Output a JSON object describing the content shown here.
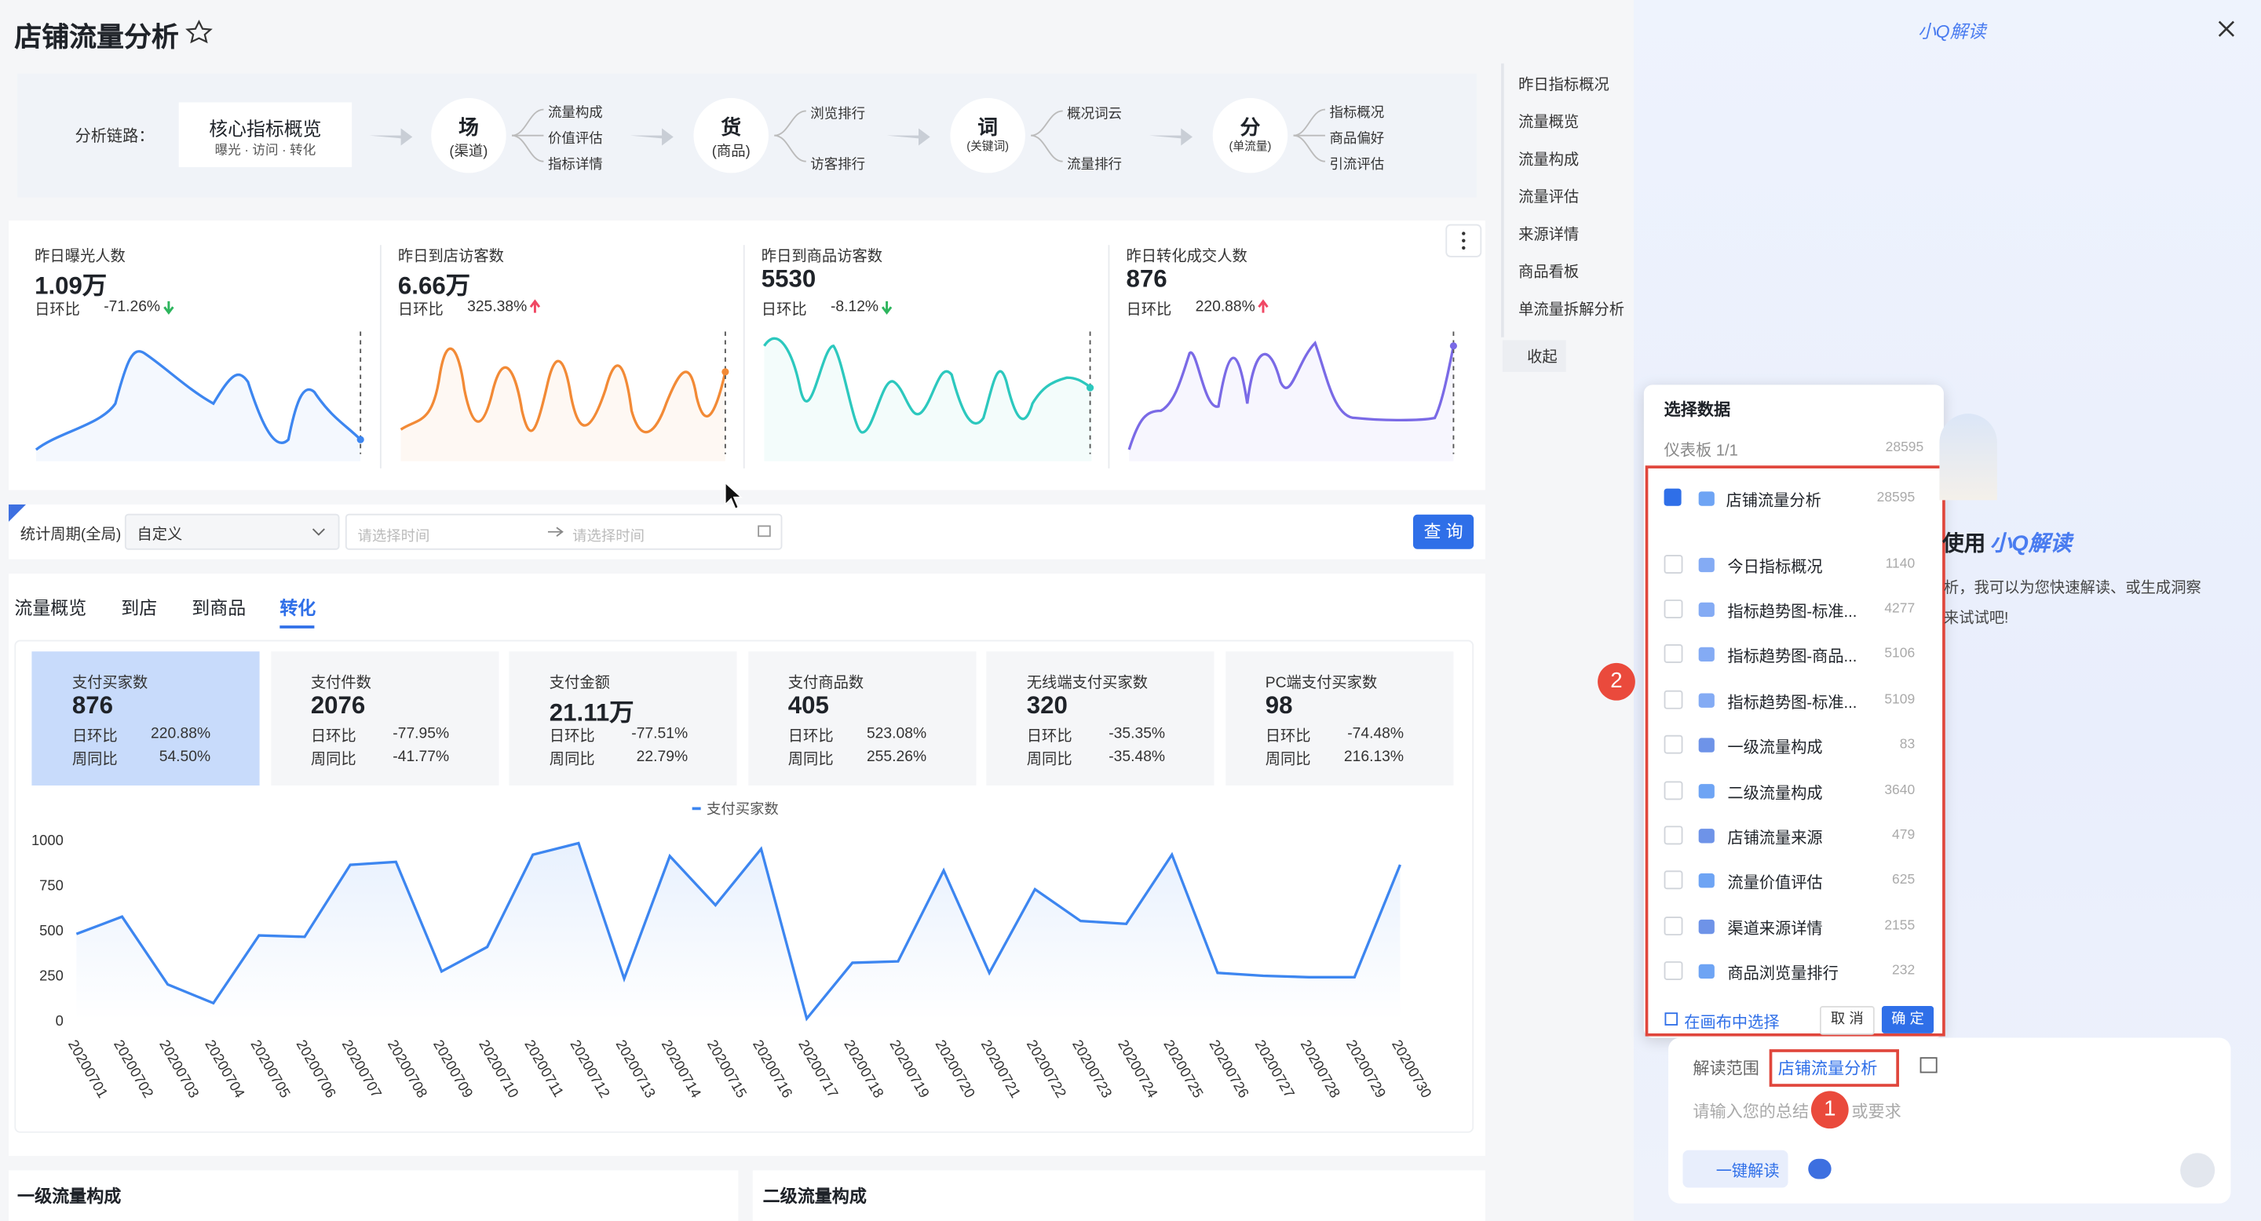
{
  "header": {
    "title": "店铺流量分析"
  },
  "chain": {
    "label": "分析链路：",
    "core": {
      "title": "核心指标概览",
      "subtitle": "曝光 · 访问 · 转化"
    },
    "nodes": [
      {
        "char": "场",
        "sub": "(渠道)",
        "items": [
          "流量构成",
          "价值评估",
          "指标详情"
        ]
      },
      {
        "char": "货",
        "sub": "(商品)",
        "items": [
          "浏览排行",
          "访客排行"
        ]
      },
      {
        "char": "词",
        "sub": "(关键词)",
        "items": [
          "概况词云",
          "流量排行"
        ]
      },
      {
        "char": "分",
        "sub": "(单流量)",
        "items": [
          "指标概况",
          "商品偏好",
          "引流评估"
        ]
      }
    ]
  },
  "kpis": [
    {
      "label": "昨日曝光人数",
      "value": "1.09万",
      "compare": "日环比",
      "change": "-71.26%",
      "dir": "down",
      "color": "#3d86f0"
    },
    {
      "label": "昨日到店访客数",
      "value": "6.66万",
      "compare": "日环比",
      "change": "325.38%",
      "dir": "up",
      "color": "#f28a36"
    },
    {
      "label": "昨日到商品访客数",
      "value": "5530",
      "compare": "日环比",
      "change": "-8.12%",
      "dir": "down",
      "color": "#2cc8be"
    },
    {
      "label": "昨日转化成交人数",
      "value": "876",
      "compare": "日环比",
      "change": "220.88%",
      "dir": "up",
      "color": "#7a6ae6"
    }
  ],
  "nav": {
    "items": [
      "昨日指标概况",
      "流量概览",
      "流量构成",
      "流量评估",
      "来源详情",
      "商品看板",
      "单流量拆解分析"
    ],
    "collapse": "收起"
  },
  "filter": {
    "label": "统计周期(全局)",
    "select": "自定义",
    "start": "请选择时间",
    "end": "请选择时间",
    "button": "查 询"
  },
  "tabs": {
    "items": [
      "流量概览",
      "到店",
      "到商品",
      "转化"
    ],
    "active": 3
  },
  "metrics": [
    {
      "label": "支付买家数",
      "value": "876",
      "rows": [
        {
          "label": "日环比",
          "value": "220.88%",
          "dir": "up"
        },
        {
          "label": "周同比",
          "value": "54.50%",
          "dir": "up"
        }
      ]
    },
    {
      "label": "支付件数",
      "value": "2076",
      "rows": [
        {
          "label": "日环比",
          "value": "-77.95%",
          "dir": "down"
        },
        {
          "label": "周同比",
          "value": "-41.77%",
          "dir": "down"
        }
      ]
    },
    {
      "label": "支付金额",
      "value": "21.11万",
      "rows": [
        {
          "label": "日环比",
          "value": "-77.51%",
          "dir": "down"
        },
        {
          "label": "周同比",
          "value": "22.79%",
          "dir": "up"
        }
      ]
    },
    {
      "label": "支付商品数",
      "value": "405",
      "rows": [
        {
          "label": "日环比",
          "value": "523.08%",
          "dir": "up"
        },
        {
          "label": "周同比",
          "value": "255.26%",
          "dir": "up"
        }
      ]
    },
    {
      "label": "无线端支付买家数",
      "value": "320",
      "rows": [
        {
          "label": "日环比",
          "value": "-35.35%",
          "dir": "down"
        },
        {
          "label": "周同比",
          "value": "-35.48%",
          "dir": "down"
        }
      ]
    },
    {
      "label": "PC端支付买家数",
      "value": "98",
      "rows": [
        {
          "label": "日环比",
          "value": "-74.48%",
          "dir": "down"
        },
        {
          "label": "周同比",
          "value": "216.13%",
          "dir": "up"
        }
      ]
    }
  ],
  "chart_data": {
    "type": "line",
    "categories": [
      "20200701",
      "20200702",
      "20200703",
      "20200704",
      "20200705",
      "20200706",
      "20200707",
      "20200708",
      "20200709",
      "20200710",
      "20200711",
      "20200712",
      "20200713",
      "20200714",
      "20200715",
      "20200716",
      "20200717",
      "20200718",
      "20200719",
      "20200720",
      "20200721",
      "20200722",
      "20200723",
      "20200724",
      "20200725",
      "20200726",
      "20200727",
      "20200728",
      "20200729",
      "20200730"
    ],
    "series": [
      {
        "name": "支付买家数",
        "color": "#3d86f0",
        "values": [
          480,
          576,
          200,
          96,
          472,
          464,
          864,
          880,
          272,
          408,
          920,
          984,
          232,
          912,
          640,
          952,
          10,
          320,
          328,
          832,
          264,
          728,
          552,
          536,
          920,
          264,
          248,
          240,
          240,
          864
        ]
      }
    ],
    "ylim": [
      0,
      1000
    ],
    "yticks": [
      0,
      250,
      500,
      750,
      1000
    ],
    "grid": false,
    "legend": "top"
  },
  "sections": [
    "一级流量构成",
    "二级流量构成"
  ],
  "assistant": {
    "brand": "小Q解读",
    "heading": "使用",
    "heading_brand": "小Q解读",
    "desc1": "析，我可以为您快速解读、或生成洞察",
    "desc2": "来试试吧!",
    "popup": {
      "title": "选择数据",
      "subtitle": "仪表板 1/1",
      "total": 28595,
      "items": [
        {
          "name": "店铺流量分析",
          "count": 28595,
          "checked": true
        },
        {
          "name": "今日指标概况",
          "count": 1140,
          "checked": false
        },
        {
          "name": "指标趋势图-标准...",
          "count": 4277,
          "checked": false
        },
        {
          "name": "指标趋势图-商品...",
          "count": 5106,
          "checked": false
        },
        {
          "name": "指标趋势图-标准...",
          "count": 5109,
          "checked": false
        },
        {
          "name": "一级流量构成",
          "count": 83,
          "checked": false
        },
        {
          "name": "二级流量构成",
          "count": 3640,
          "checked": false
        },
        {
          "name": "店铺流量来源",
          "count": 479,
          "checked": false
        },
        {
          "name": "流量价值评估",
          "count": 625,
          "checked": false
        },
        {
          "name": "渠道来源详情",
          "count": 2155,
          "checked": false
        },
        {
          "name": "商品浏览量排行",
          "count": 232,
          "checked": false
        }
      ],
      "canvas_select": "在画布中选择",
      "cancel": "取 消",
      "ok": "确 定"
    },
    "input": {
      "scope_label": "解读范围",
      "scope": "店铺流量分析",
      "placeholder": "请输入您的总结",
      "placeholder_tail": "或要求",
      "button": "一键解读"
    },
    "badges": [
      "1",
      "2"
    ]
  }
}
